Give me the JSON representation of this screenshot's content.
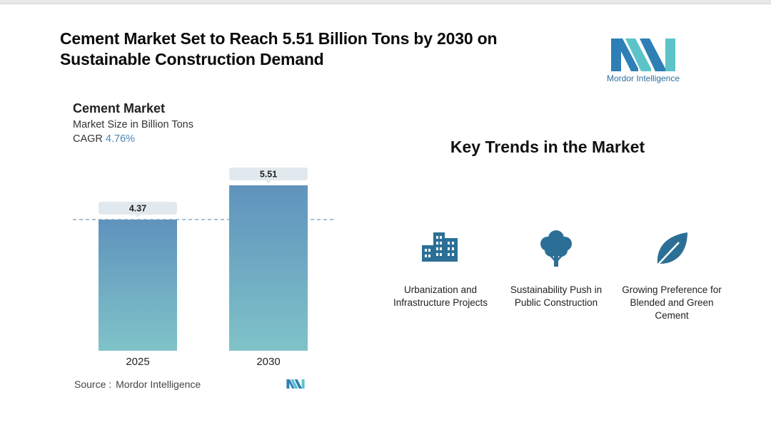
{
  "headline": "Cement Market Set to Reach 5.51 Billion Tons by 2030 on Sustainable Construction Demand",
  "brand": {
    "name": "Mordor Intelligence",
    "color": "#2e6f9e",
    "accent": "#5cc3c9"
  },
  "chart": {
    "title": "Cement Market",
    "subtitle": "Market Size in Billion Tons",
    "cagr_label": "CAGR",
    "cagr_value": "4.76%"
  },
  "chart_data": {
    "type": "bar",
    "title": "Cement Market",
    "ylabel": "Market Size in Billion Tons",
    "categories": [
      "2025",
      "2030"
    ],
    "values": [
      4.37,
      5.51
    ],
    "value_labels": [
      "4.37",
      "5.51"
    ],
    "ylim": [
      0,
      5.51
    ],
    "reference_line": 4.37,
    "grid": false,
    "bar_gradient": [
      "#5f93bd",
      "#7fc3c8"
    ]
  },
  "source": {
    "label": "Source :",
    "name": "Mordor Intelligence"
  },
  "trends": {
    "title": "Key Trends in the Market",
    "icon_color": "#2c6f96",
    "items": [
      {
        "icon": "buildings-icon",
        "label": "Urbanization and Infrastructure Projects"
      },
      {
        "icon": "tree-icon",
        "label": "Sustainability Push in Public Construction"
      },
      {
        "icon": "leaf-icon",
        "label": "Growing Preference for Blended and Green Cement"
      }
    ]
  }
}
